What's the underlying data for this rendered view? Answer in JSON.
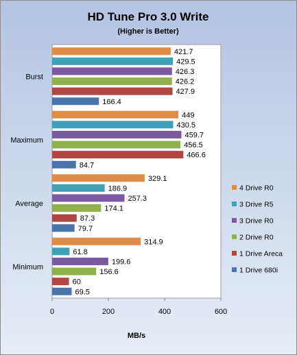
{
  "chart_data": {
    "type": "bar",
    "orientation": "horizontal",
    "title": "HD Tune Pro 3.0 Write",
    "subtitle": "(Higher is Better)",
    "xlabel": "MB/s",
    "ylabel": "",
    "xlim": [
      0,
      600
    ],
    "x_ticks": [
      0,
      200,
      400,
      600
    ],
    "grid": false,
    "legend_position": "right",
    "categories": [
      "Burst",
      "Maximum",
      "Average",
      "Minimum"
    ],
    "series": [
      {
        "name": "4 Drive R0",
        "color": "#DE8C48",
        "values": [
          421.7,
          449,
          329.1,
          314.9
        ]
      },
      {
        "name": "3 Drive R5",
        "color": "#3FA1B5",
        "values": [
          429.5,
          430.5,
          186.9,
          61.8
        ]
      },
      {
        "name": "3 Drive R0",
        "color": "#7A5AA0",
        "values": [
          426.3,
          459.7,
          257.3,
          199.6
        ]
      },
      {
        "name": "2 Drive R0",
        "color": "#92B04E",
        "values": [
          426.2,
          456.5,
          174.1,
          156.6
        ]
      },
      {
        "name": "1 Drive Areca",
        "color": "#B04644",
        "values": [
          427.9,
          466.6,
          87.3,
          60
        ]
      },
      {
        "name": "1 Drive 680i",
        "color": "#4A74AA",
        "values": [
          166.4,
          84.7,
          79.7,
          69.5
        ]
      }
    ]
  }
}
